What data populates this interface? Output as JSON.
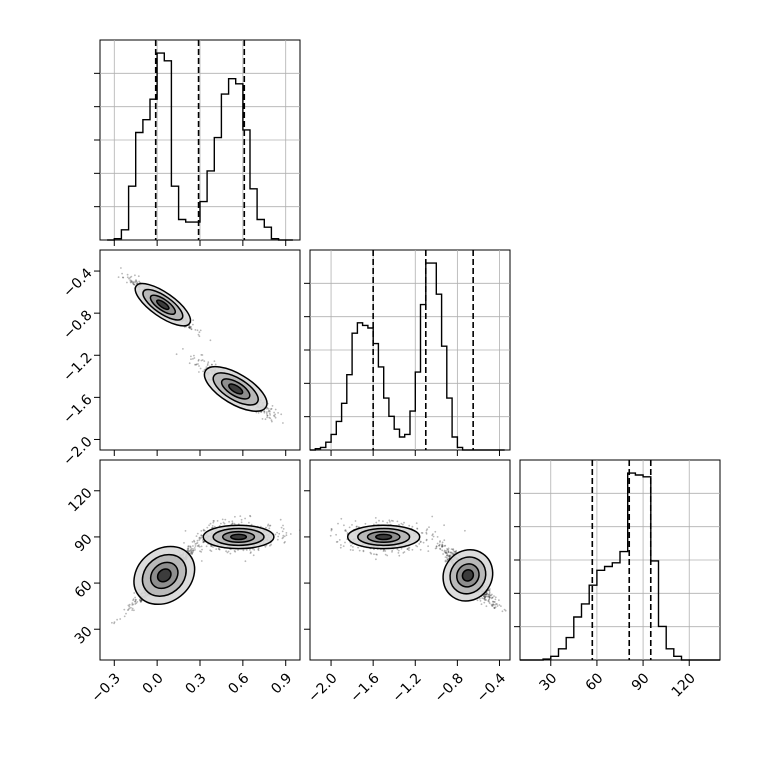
{
  "chart_data": [
    {
      "type": "histogram",
      "panel": "x-marginal",
      "xlim": [
        -0.4,
        1.0
      ],
      "bins": [
        -0.35,
        -0.3,
        -0.25,
        -0.2,
        -0.15,
        -0.1,
        -0.05,
        0.0,
        0.05,
        0.1,
        0.15,
        0.2,
        0.25,
        0.3,
        0.35,
        0.4,
        0.45,
        0.5,
        0.55,
        0.6,
        0.65,
        0.7,
        0.75,
        0.8,
        0.85,
        0.9,
        0.95
      ],
      "counts": [
        0,
        5,
        40,
        210,
        420,
        470,
        550,
        730,
        700,
        210,
        80,
        70,
        70,
        150,
        270,
        400,
        570,
        630,
        610,
        430,
        200,
        80,
        50,
        5,
        0,
        0
      ],
      "quantiles": [
        -0.01,
        0.29,
        0.61
      ],
      "xticks": [
        "−0.3",
        "0.0",
        "0.3",
        "0.6",
        "0.9"
      ],
      "grid": true
    },
    {
      "type": "scatter-density",
      "panel": "x-y joint",
      "xlim": [
        -0.4,
        1.0
      ],
      "ylim": [
        -2.1,
        -0.2
      ],
      "clusters": [
        {
          "center": [
            0.04,
            -0.72
          ],
          "spread": [
            0.12,
            0.12
          ],
          "tilt": -0.7
        },
        {
          "center": [
            0.55,
            -1.52
          ],
          "spread": [
            0.13,
            0.15
          ],
          "tilt": -0.6
        }
      ],
      "yticks": [
        "−0.4",
        "−0.8",
        "−1.2",
        "−1.6",
        "−2.0"
      ]
    },
    {
      "type": "histogram",
      "panel": "y-marginal",
      "xlim": [
        -2.2,
        -0.3
      ],
      "bins": [
        -2.2,
        -2.15,
        -2.1,
        -2.05,
        -2.0,
        -1.95,
        -1.9,
        -1.85,
        -1.8,
        -1.75,
        -1.7,
        -1.65,
        -1.6,
        -1.55,
        -1.5,
        -1.45,
        -1.4,
        -1.35,
        -1.3,
        -1.25,
        -1.2,
        -1.15,
        -1.1,
        -1.05,
        -1.0,
        -0.95,
        -0.9,
        -0.85,
        -0.8,
        -0.75,
        -0.7,
        -0.65,
        -0.6,
        -0.55,
        -0.5,
        -0.45,
        -0.4,
        -0.35
      ],
      "counts": [
        0,
        5,
        10,
        30,
        60,
        110,
        180,
        290,
        450,
        490,
        480,
        470,
        410,
        320,
        200,
        130,
        80,
        50,
        60,
        150,
        300,
        560,
        720,
        720,
        600,
        400,
        200,
        50,
        10,
        0,
        0,
        0,
        0,
        0,
        0,
        0,
        0
      ],
      "quantiles": [
        -1.6,
        -1.1,
        -0.65
      ],
      "xticks": [
        "−2.0",
        "−1.6",
        "−1.2",
        "−0.8",
        "−0.4"
      ],
      "grid": true
    },
    {
      "type": "scatter-density",
      "panel": "x-z joint",
      "xlim": [
        -0.4,
        1.0
      ],
      "ylim": [
        10,
        140
      ],
      "clusters": [
        {
          "center": [
            0.05,
            65
          ],
          "spread": [
            0.12,
            18
          ],
          "tilt": 0.8
        },
        {
          "center": [
            0.57,
            90
          ],
          "spread": [
            0.13,
            8
          ],
          "tilt": 0.0
        }
      ],
      "yticks": [
        "30",
        "60",
        "90",
        "120"
      ],
      "xticks": [
        "−0.3",
        "0.0",
        "0.3",
        "0.6",
        "0.9"
      ]
    },
    {
      "type": "scatter-density",
      "panel": "y-z joint",
      "xlim": [
        -2.2,
        -0.3
      ],
      "ylim": [
        10,
        140
      ],
      "clusters": [
        {
          "center": [
            -1.5,
            90
          ],
          "spread": [
            0.18,
            8
          ],
          "tilt": 0.0
        },
        {
          "center": [
            -0.7,
            65
          ],
          "spread": [
            0.12,
            18
          ],
          "tilt": -0.7
        }
      ],
      "xticks": [
        "−2.0",
        "−1.6",
        "−1.2",
        "−0.8",
        "−0.4"
      ]
    },
    {
      "type": "histogram",
      "panel": "z-marginal",
      "xlim": [
        10,
        140
      ],
      "bins": [
        10,
        15,
        20,
        25,
        30,
        35,
        40,
        45,
        50,
        55,
        60,
        65,
        70,
        75,
        80,
        85,
        90,
        95,
        100,
        105,
        110,
        115,
        120,
        125,
        130,
        135,
        140
      ],
      "counts": [
        0,
        0,
        0,
        5,
        20,
        60,
        120,
        230,
        300,
        400,
        480,
        500,
        520,
        580,
        1000,
        990,
        980,
        530,
        180,
        60,
        20,
        0,
        0,
        0,
        0,
        0
      ],
      "quantiles": [
        57,
        81,
        95
      ],
      "xticks": [
        "30",
        "60",
        "90",
        "120"
      ],
      "grid": true
    }
  ]
}
